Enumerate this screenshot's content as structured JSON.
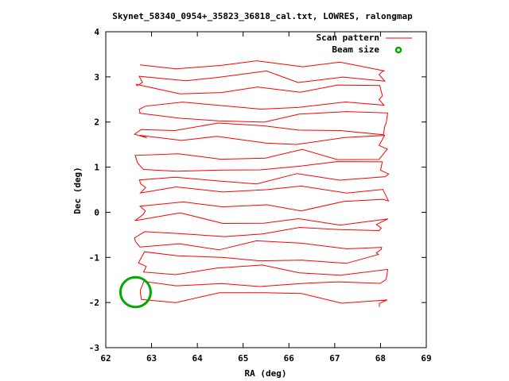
{
  "chart_data": {
    "type": "line",
    "title": "Skynet_58340_0954+_35823_36818_cal.txt, LOWRES, ralongmap",
    "xlabel": "RA (deg)",
    "ylabel": "Dec (deg)",
    "xlim": [
      62,
      69
    ],
    "ylim": [
      -3,
      4
    ],
    "xticks": [
      "62",
      "63",
      "64",
      "65",
      "66",
      "67",
      "68",
      "69"
    ],
    "yticks": [
      "-3",
      "-2",
      "-1",
      "0",
      "1",
      "2",
      "3",
      "4"
    ],
    "legend_position": "top-right",
    "series": [
      {
        "name": "Scan pattern",
        "color": "#ff0000",
        "style": "line",
        "rows": [
          3.25,
          3.0,
          2.7,
          2.4,
          2.1,
          1.85,
          1.6,
          1.3,
          1.05,
          0.75,
          0.45,
          0.15,
          -0.15,
          -0.45,
          -0.7,
          -1.0,
          -1.3,
          -1.6,
          -1.9
        ],
        "ra_left": 62.75,
        "ra_right": 68.05
      },
      {
        "name": "Beam size",
        "color": "#00aa00",
        "style": "circle",
        "center": [
          62.65,
          -1.77
        ],
        "radius_deg": 0.33
      }
    ]
  }
}
